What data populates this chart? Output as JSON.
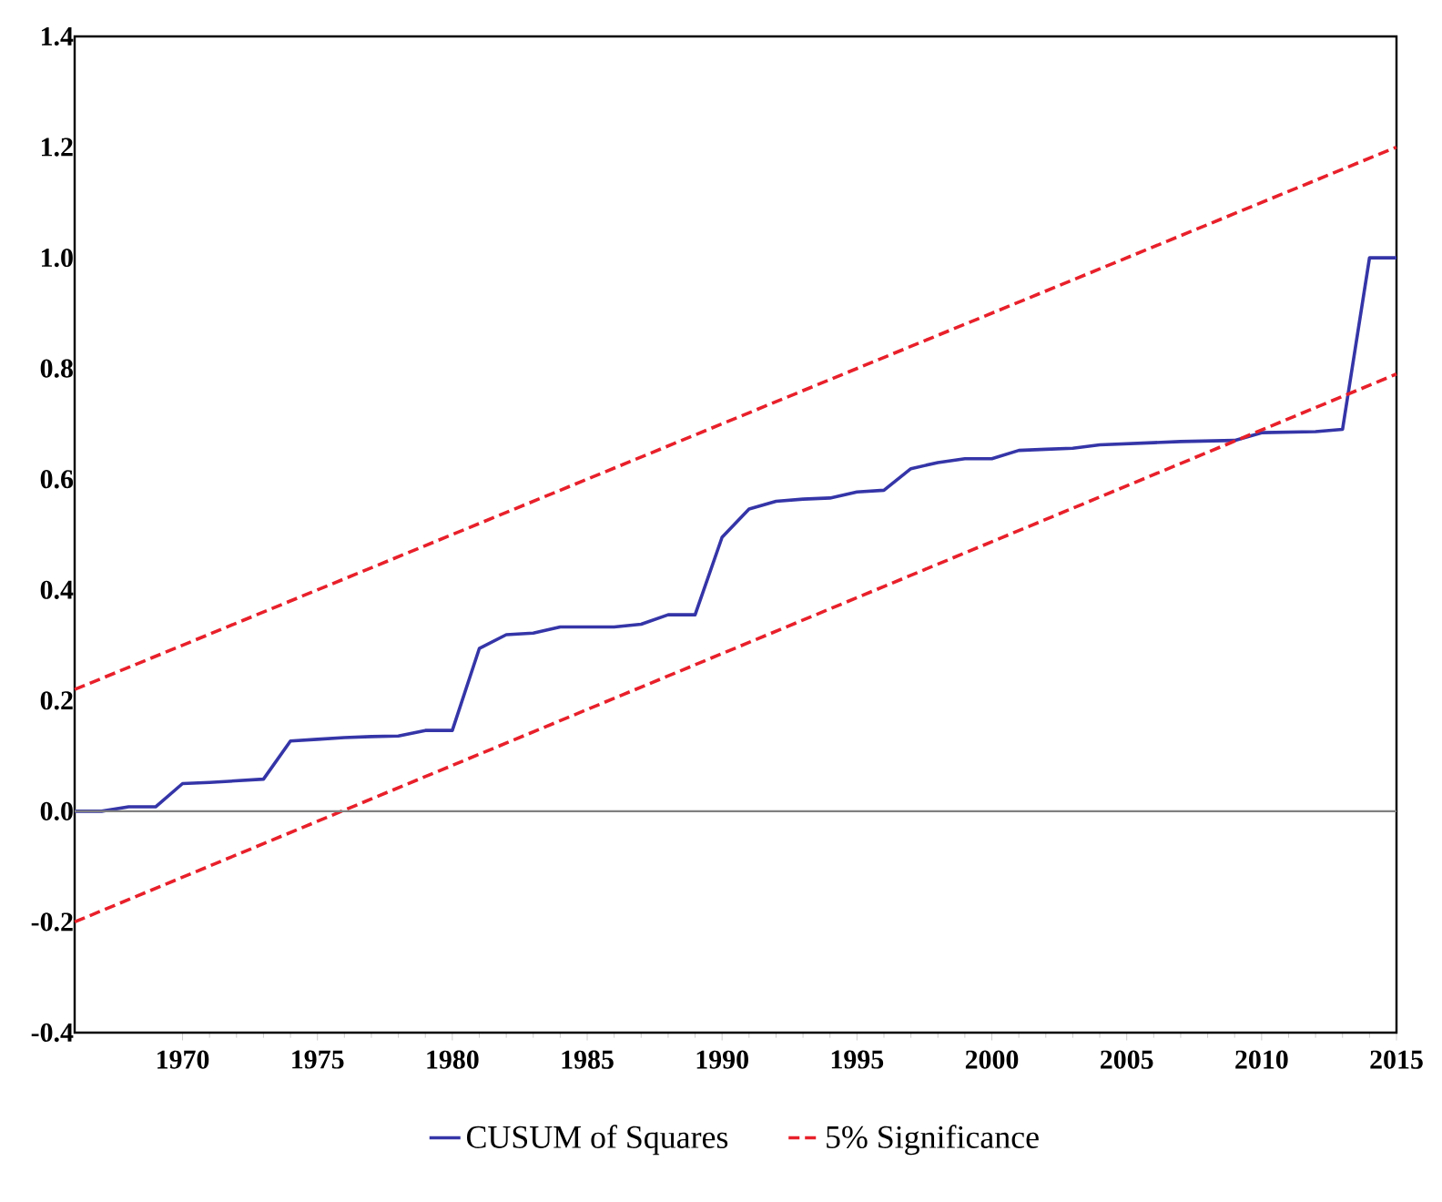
{
  "chart_data": {
    "type": "line",
    "xlim": [
      1966,
      2015
    ],
    "xticks": [
      1970,
      1975,
      1980,
      1985,
      1990,
      1995,
      2000,
      2005,
      2010,
      2015
    ],
    "ylim": [
      -0.4,
      1.4
    ],
    "yticks": [
      -0.4,
      -0.2,
      {
        "value": 0.0,
        "label": "0.0"
      },
      0.2,
      0.4,
      0.6,
      0.8,
      {
        "value": 1.0,
        "label": "1.0"
      },
      1.2,
      1.4
    ],
    "legend": "bottom",
    "ref_lines": [
      {
        "axis": "y",
        "value": 0,
        "color": "#808080",
        "line_style": "solid"
      }
    ],
    "series": [
      {
        "name": "CUSUM of Squares",
        "color": "#3535a8",
        "line_style": "solid",
        "x": [
          1966,
          1967,
          1968,
          1969,
          1970,
          1971,
          1972,
          1973,
          1974,
          1975,
          1976,
          1977,
          1978,
          1979,
          1980,
          1981,
          1982,
          1983,
          1984,
          1985,
          1986,
          1987,
          1988,
          1989,
          1990,
          1991,
          1992,
          1993,
          1994,
          1995,
          1996,
          1997,
          1998,
          1999,
          2000,
          2001,
          2002,
          2003,
          2004,
          2005,
          2006,
          2007,
          2008,
          2009,
          2010,
          2011,
          2012,
          2013,
          2014,
          2015
        ],
        "values": [
          0.0,
          0.0,
          0.008,
          0.008,
          0.05,
          0.052,
          0.055,
          0.058,
          0.127,
          0.13,
          0.133,
          0.135,
          0.136,
          0.146,
          0.146,
          0.294,
          0.319,
          0.322,
          0.333,
          0.333,
          0.333,
          0.338,
          0.355,
          0.355,
          0.495,
          0.546,
          0.56,
          0.564,
          0.566,
          0.577,
          0.58,
          0.619,
          0.63,
          0.637,
          0.637,
          0.652,
          0.654,
          0.656,
          0.662,
          0.664,
          0.666,
          0.668,
          0.669,
          0.67,
          0.684,
          0.685,
          0.686,
          0.69,
          1.0,
          1.0
        ]
      },
      {
        "name": "5% Significance",
        "color": "#e8202a",
        "line_style": "dashed",
        "x": [
          1966,
          2015
        ],
        "values": [
          0.22,
          1.2
        ]
      },
      {
        "color": "#e8202a",
        "line_style": "dashed",
        "x": [
          1966,
          2015
        ],
        "values": [
          -0.2,
          0.79
        ]
      }
    ]
  }
}
